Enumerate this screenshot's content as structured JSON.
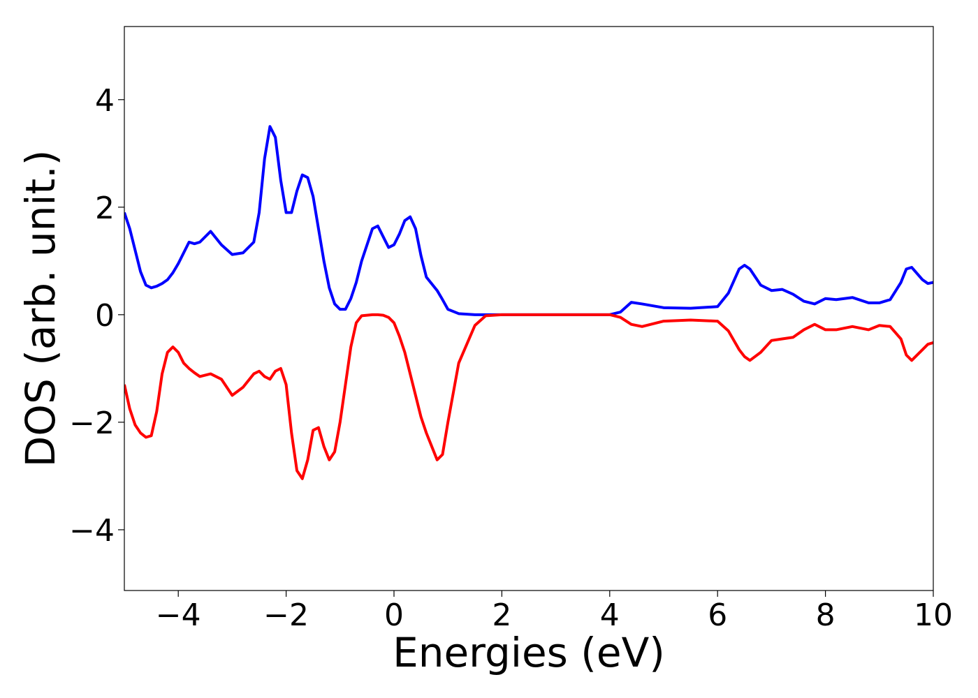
{
  "chart_data": {
    "type": "line",
    "xlabel": "Energies (eV)",
    "ylabel": "DOS (arb. unit.)",
    "xlim": [
      -5,
      10
    ],
    "ylim": [
      -5.13,
      5.36
    ],
    "xticks": [
      {
        "value": -4,
        "label": "−4"
      },
      {
        "value": -2,
        "label": "−2"
      },
      0,
      2,
      4,
      6,
      8,
      10
    ],
    "yticks": [
      {
        "value": -4,
        "label": "−4"
      },
      {
        "value": -2,
        "label": "−2"
      },
      0,
      2,
      4
    ],
    "grid": false,
    "x": [
      -5,
      -4.9,
      -4.8,
      -4.7,
      -4.6,
      -4.5,
      -4.4,
      -4.3,
      -4.2,
      -4.1,
      -4.0,
      -3.9,
      -3.8,
      -3.7,
      -3.6,
      -3.4,
      -3.2,
      -3.0,
      -2.8,
      -2.6,
      -2.5,
      -2.4,
      -2.3,
      -2.2,
      -2.1,
      -2.0,
      -1.9,
      -1.8,
      -1.7,
      -1.6,
      -1.5,
      -1.4,
      -1.3,
      -1.2,
      -1.1,
      -1.0,
      -0.9,
      -0.8,
      -0.7,
      -0.6,
      -0.4,
      -0.3,
      -0.2,
      -0.1,
      0,
      0.1,
      0.2,
      0.3,
      0.4,
      0.5,
      0.6,
      0.8,
      0.9,
      1.0,
      1.2,
      1.5,
      1.7,
      2,
      3,
      4,
      4.2,
      4.4,
      4.6,
      5,
      5.5,
      6,
      6.2,
      6.4,
      6.5,
      6.6,
      6.8,
      7.0,
      7.2,
      7.4,
      7.6,
      7.8,
      8.0,
      8.2,
      8.5,
      8.8,
      9.0,
      9.2,
      9.4,
      9.5,
      9.6,
      9.8,
      9.9,
      10
    ],
    "series": [
      {
        "color": "#0000ff",
        "values": [
          1.9,
          1.6,
          1.2,
          0.8,
          0.55,
          0.5,
          0.53,
          0.58,
          0.65,
          0.78,
          0.95,
          1.15,
          1.35,
          1.32,
          1.35,
          1.55,
          1.3,
          1.12,
          1.15,
          1.35,
          1.9,
          2.9,
          3.5,
          3.3,
          2.5,
          1.9,
          1.9,
          2.3,
          2.6,
          2.55,
          2.2,
          1.6,
          1.0,
          0.5,
          0.2,
          0.1,
          0.1,
          0.3,
          0.6,
          1.0,
          1.6,
          1.65,
          1.45,
          1.25,
          1.3,
          1.5,
          1.75,
          1.82,
          1.6,
          1.1,
          0.7,
          0.45,
          0.28,
          0.1,
          0.02,
          0,
          0,
          0,
          0,
          0,
          0.05,
          0.23,
          0.2,
          0.13,
          0.12,
          0.15,
          0.4,
          0.85,
          0.92,
          0.85,
          0.55,
          0.45,
          0.47,
          0.38,
          0.25,
          0.2,
          0.3,
          0.28,
          0.32,
          0.22,
          0.22,
          0.28,
          0.6,
          0.85,
          0.88,
          0.65,
          0.58,
          0.6
        ]
      },
      {
        "color": "#ff0000",
        "values": [
          -1.3,
          -1.75,
          -2.05,
          -2.2,
          -2.28,
          -2.25,
          -1.8,
          -1.1,
          -0.7,
          -0.6,
          -0.7,
          -0.9,
          -1.0,
          -1.08,
          -1.15,
          -1.1,
          -1.2,
          -1.5,
          -1.35,
          -1.1,
          -1.05,
          -1.15,
          -1.2,
          -1.05,
          -1.0,
          -1.3,
          -2.2,
          -2.9,
          -3.05,
          -2.7,
          -2.15,
          -2.1,
          -2.45,
          -2.7,
          -2.55,
          -2.0,
          -1.3,
          -0.6,
          -0.15,
          -0.02,
          0,
          0,
          -0.01,
          -0.05,
          -0.15,
          -0.4,
          -0.7,
          -1.1,
          -1.5,
          -1.9,
          -2.2,
          -2.7,
          -2.6,
          -2.0,
          -0.9,
          -0.2,
          -0.02,
          0,
          0,
          0,
          -0.05,
          -0.18,
          -0.22,
          -0.12,
          -0.1,
          -0.12,
          -0.3,
          -0.65,
          -0.78,
          -0.85,
          -0.7,
          -0.48,
          -0.45,
          -0.42,
          -0.28,
          -0.18,
          -0.28,
          -0.28,
          -0.22,
          -0.28,
          -0.2,
          -0.22,
          -0.45,
          -0.75,
          -0.85,
          -0.65,
          -0.55,
          -0.52
        ]
      }
    ]
  }
}
